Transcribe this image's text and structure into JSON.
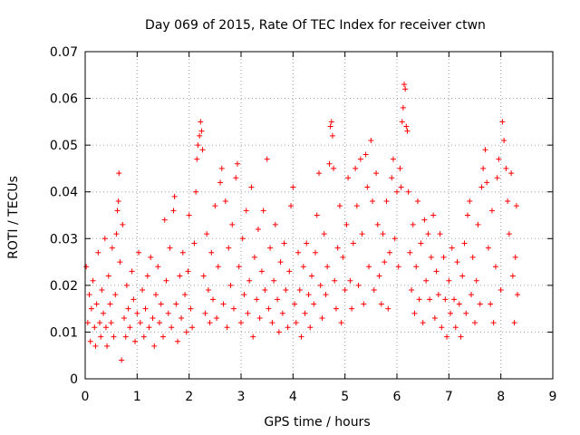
{
  "chart_data": {
    "type": "scatter",
    "title": "Day 069 of 2015, Rate Of TEC Index for receiver ctwn",
    "xlabel": "GPS time / hours",
    "ylabel": "ROTI / TECUs",
    "xlim": [
      0,
      9
    ],
    "ylim": [
      0,
      0.07
    ],
    "x_ticks": [
      0,
      1,
      2,
      3,
      4,
      5,
      6,
      7,
      8,
      9
    ],
    "x_tick_labels": [
      "0",
      "1",
      "2",
      "3",
      "4",
      "5",
      "6",
      "7",
      "8",
      "9"
    ],
    "y_ticks": [
      0,
      0.01,
      0.02,
      0.03,
      0.04,
      0.05,
      0.06,
      0.07
    ],
    "y_tick_labels": [
      "0",
      "0.01",
      "0.02",
      "0.03",
      "0.04",
      "0.05",
      "0.06",
      "0.07"
    ],
    "grid": true,
    "marker": "+",
    "series": [
      {
        "name": "ROTI",
        "color": "#ff0000",
        "points": [
          [
            0.02,
            0.024
          ],
          [
            0.05,
            0.012
          ],
          [
            0.08,
            0.018
          ],
          [
            0.1,
            0.008
          ],
          [
            0.12,
            0.015
          ],
          [
            0.15,
            0.021
          ],
          [
            0.18,
            0.011
          ],
          [
            0.2,
            0.007
          ],
          [
            0.22,
            0.016
          ],
          [
            0.25,
            0.027
          ],
          [
            0.28,
            0.012
          ],
          [
            0.3,
            0.009
          ],
          [
            0.32,
            0.019
          ],
          [
            0.35,
            0.014
          ],
          [
            0.38,
            0.03
          ],
          [
            0.4,
            0.011
          ],
          [
            0.42,
            0.007
          ],
          [
            0.45,
            0.022
          ],
          [
            0.48,
            0.016
          ],
          [
            0.5,
            0.012
          ],
          [
            0.52,
            0.028
          ],
          [
            0.55,
            0.009
          ],
          [
            0.58,
            0.018
          ],
          [
            0.6,
            0.031
          ],
          [
            0.62,
            0.036
          ],
          [
            0.64,
            0.038
          ],
          [
            0.65,
            0.044
          ],
          [
            0.67,
            0.025
          ],
          [
            0.7,
            0.004
          ],
          [
            0.72,
            0.033
          ],
          [
            0.75,
            0.013
          ],
          [
            0.78,
            0.009
          ],
          [
            0.8,
            0.02
          ],
          [
            0.83,
            0.015
          ],
          [
            0.86,
            0.011
          ],
          [
            0.9,
            0.023
          ],
          [
            0.93,
            0.017
          ],
          [
            0.96,
            0.008
          ],
          [
            1.0,
            0.014
          ],
          [
            1.03,
            0.027
          ],
          [
            1.06,
            0.012
          ],
          [
            1.1,
            0.019
          ],
          [
            1.13,
            0.009
          ],
          [
            1.16,
            0.015
          ],
          [
            1.2,
            0.022
          ],
          [
            1.23,
            0.011
          ],
          [
            1.26,
            0.026
          ],
          [
            1.3,
            0.013
          ],
          [
            1.33,
            0.007
          ],
          [
            1.36,
            0.018
          ],
          [
            1.4,
            0.024
          ],
          [
            1.43,
            0.012
          ],
          [
            1.46,
            0.016
          ],
          [
            1.5,
            0.009
          ],
          [
            1.53,
            0.034
          ],
          [
            1.56,
            0.021
          ],
          [
            1.6,
            0.014
          ],
          [
            1.63,
            0.028
          ],
          [
            1.66,
            0.011
          ],
          [
            1.7,
            0.036
          ],
          [
            1.72,
            0.039
          ],
          [
            1.75,
            0.016
          ],
          [
            1.78,
            0.008
          ],
          [
            1.82,
            0.022
          ],
          [
            1.85,
            0.013
          ],
          [
            1.88,
            0.027
          ],
          [
            1.92,
            0.018
          ],
          [
            1.95,
            0.01
          ],
          [
            1.98,
            0.023
          ],
          [
            2.0,
            0.035
          ],
          [
            2.03,
            0.015
          ],
          [
            2.06,
            0.011
          ],
          [
            2.1,
            0.029
          ],
          [
            2.13,
            0.04
          ],
          [
            2.15,
            0.047
          ],
          [
            2.17,
            0.05
          ],
          [
            2.2,
            0.052
          ],
          [
            2.22,
            0.055
          ],
          [
            2.24,
            0.053
          ],
          [
            2.26,
            0.049
          ],
          [
            2.28,
            0.022
          ],
          [
            2.31,
            0.014
          ],
          [
            2.34,
            0.031
          ],
          [
            2.37,
            0.019
          ],
          [
            2.4,
            0.012
          ],
          [
            2.43,
            0.027
          ],
          [
            2.46,
            0.017
          ],
          [
            2.5,
            0.037
          ],
          [
            2.53,
            0.013
          ],
          [
            2.56,
            0.024
          ],
          [
            2.6,
            0.042
          ],
          [
            2.63,
            0.045
          ],
          [
            2.66,
            0.016
          ],
          [
            2.7,
            0.038
          ],
          [
            2.73,
            0.011
          ],
          [
            2.76,
            0.028
          ],
          [
            2.8,
            0.02
          ],
          [
            2.83,
            0.033
          ],
          [
            2.86,
            0.015
          ],
          [
            2.9,
            0.043
          ],
          [
            2.93,
            0.046
          ],
          [
            2.96,
            0.024
          ],
          [
            3.0,
            0.012
          ],
          [
            3.03,
            0.03
          ],
          [
            3.06,
            0.018
          ],
          [
            3.1,
            0.036
          ],
          [
            3.13,
            0.014
          ],
          [
            3.16,
            0.021
          ],
          [
            3.2,
            0.041
          ],
          [
            3.23,
            0.009
          ],
          [
            3.26,
            0.026
          ],
          [
            3.3,
            0.017
          ],
          [
            3.33,
            0.032
          ],
          [
            3.36,
            0.013
          ],
          [
            3.4,
            0.023
          ],
          [
            3.43,
            0.036
          ],
          [
            3.46,
            0.019
          ],
          [
            3.5,
            0.047
          ],
          [
            3.53,
            0.015
          ],
          [
            3.56,
            0.028
          ],
          [
            3.6,
            0.012
          ],
          [
            3.63,
            0.021
          ],
          [
            3.66,
            0.033
          ],
          [
            3.7,
            0.017
          ],
          [
            3.73,
            0.01
          ],
          [
            3.76,
            0.025
          ],
          [
            3.8,
            0.014
          ],
          [
            3.83,
            0.029
          ],
          [
            3.86,
            0.019
          ],
          [
            3.9,
            0.011
          ],
          [
            3.93,
            0.023
          ],
          [
            3.96,
            0.037
          ],
          [
            4.0,
            0.041
          ],
          [
            4.03,
            0.016
          ],
          [
            4.06,
            0.012
          ],
          [
            4.1,
            0.027
          ],
          [
            4.13,
            0.019
          ],
          [
            4.16,
            0.009
          ],
          [
            4.2,
            0.024
          ],
          [
            4.23,
            0.014
          ],
          [
            4.26,
            0.029
          ],
          [
            4.3,
            0.018
          ],
          [
            4.33,
            0.011
          ],
          [
            4.36,
            0.022
          ],
          [
            4.4,
            0.016
          ],
          [
            4.43,
            0.027
          ],
          [
            4.46,
            0.035
          ],
          [
            4.5,
            0.044
          ],
          [
            4.53,
            0.02
          ],
          [
            4.56,
            0.013
          ],
          [
            4.6,
            0.031
          ],
          [
            4.63,
            0.018
          ],
          [
            4.66,
            0.024
          ],
          [
            4.7,
            0.046
          ],
          [
            4.72,
            0.054
          ],
          [
            4.74,
            0.055
          ],
          [
            4.76,
            0.052
          ],
          [
            4.78,
            0.045
          ],
          [
            4.8,
            0.021
          ],
          [
            4.83,
            0.015
          ],
          [
            4.86,
            0.028
          ],
          [
            4.9,
            0.037
          ],
          [
            4.93,
            0.012
          ],
          [
            4.96,
            0.026
          ],
          [
            5.0,
            0.019
          ],
          [
            5.03,
            0.033
          ],
          [
            5.06,
            0.043
          ],
          [
            5.1,
            0.021
          ],
          [
            5.13,
            0.015
          ],
          [
            5.16,
            0.029
          ],
          [
            5.2,
            0.045
          ],
          [
            5.23,
            0.037
          ],
          [
            5.26,
            0.02
          ],
          [
            5.3,
            0.047
          ],
          [
            5.33,
            0.031
          ],
          [
            5.36,
            0.016
          ],
          [
            5.4,
            0.048
          ],
          [
            5.43,
            0.041
          ],
          [
            5.46,
            0.024
          ],
          [
            5.5,
            0.051
          ],
          [
            5.53,
            0.038
          ],
          [
            5.56,
            0.019
          ],
          [
            5.6,
            0.044
          ],
          [
            5.63,
            0.033
          ],
          [
            5.66,
            0.022
          ],
          [
            5.7,
            0.016
          ],
          [
            5.73,
            0.031
          ],
          [
            5.76,
            0.025
          ],
          [
            5.8,
            0.038
          ],
          [
            5.83,
            0.015
          ],
          [
            5.86,
            0.027
          ],
          [
            5.9,
            0.043
          ],
          [
            5.93,
            0.047
          ],
          [
            5.96,
            0.03
          ],
          [
            6.0,
            0.04
          ],
          [
            6.03,
            0.024
          ],
          [
            6.06,
            0.045
          ],
          [
            6.08,
            0.041
          ],
          [
            6.1,
            0.055
          ],
          [
            6.12,
            0.058
          ],
          [
            6.14,
            0.063
          ],
          [
            6.16,
            0.062
          ],
          [
            6.18,
            0.054
          ],
          [
            6.2,
            0.053
          ],
          [
            6.22,
            0.04
          ],
          [
            6.25,
            0.027
          ],
          [
            6.28,
            0.019
          ],
          [
            6.31,
            0.033
          ],
          [
            6.34,
            0.014
          ],
          [
            6.37,
            0.024
          ],
          [
            6.4,
            0.038
          ],
          [
            6.43,
            0.017
          ],
          [
            6.46,
            0.029
          ],
          [
            6.5,
            0.012
          ],
          [
            6.53,
            0.034
          ],
          [
            6.56,
            0.021
          ],
          [
            6.6,
            0.031
          ],
          [
            6.63,
            0.017
          ],
          [
            6.66,
            0.026
          ],
          [
            6.7,
            0.035
          ],
          [
            6.73,
            0.013
          ],
          [
            6.76,
            0.023
          ],
          [
            6.8,
            0.018
          ],
          [
            6.83,
            0.031
          ],
          [
            6.86,
            0.011
          ],
          [
            6.9,
            0.026
          ],
          [
            6.93,
            0.017
          ],
          [
            6.96,
            0.009
          ],
          [
            7.0,
            0.021
          ],
          [
            7.03,
            0.014
          ],
          [
            7.06,
            0.028
          ],
          [
            7.1,
            0.017
          ],
          [
            7.13,
            0.011
          ],
          [
            7.16,
            0.025
          ],
          [
            7.2,
            0.016
          ],
          [
            7.23,
            0.009
          ],
          [
            7.26,
            0.022
          ],
          [
            7.3,
            0.029
          ],
          [
            7.33,
            0.014
          ],
          [
            7.36,
            0.035
          ],
          [
            7.4,
            0.038
          ],
          [
            7.43,
            0.018
          ],
          [
            7.46,
            0.026
          ],
          [
            7.5,
            0.012
          ],
          [
            7.53,
            0.021
          ],
          [
            7.56,
            0.033
          ],
          [
            7.6,
            0.016
          ],
          [
            7.63,
            0.041
          ],
          [
            7.66,
            0.045
          ],
          [
            7.7,
            0.049
          ],
          [
            7.73,
            0.042
          ],
          [
            7.76,
            0.028
          ],
          [
            7.8,
            0.016
          ],
          [
            7.83,
            0.036
          ],
          [
            7.86,
            0.012
          ],
          [
            7.9,
            0.024
          ],
          [
            7.93,
            0.043
          ],
          [
            7.96,
            0.047
          ],
          [
            8.0,
            0.019
          ],
          [
            8.03,
            0.055
          ],
          [
            8.06,
            0.051
          ],
          [
            8.1,
            0.045
          ],
          [
            8.13,
            0.038
          ],
          [
            8.16,
            0.031
          ],
          [
            8.2,
            0.044
          ],
          [
            8.23,
            0.022
          ],
          [
            8.26,
            0.012
          ],
          [
            8.28,
            0.026
          ],
          [
            8.3,
            0.037
          ],
          [
            8.32,
            0.018
          ]
        ]
      }
    ]
  }
}
